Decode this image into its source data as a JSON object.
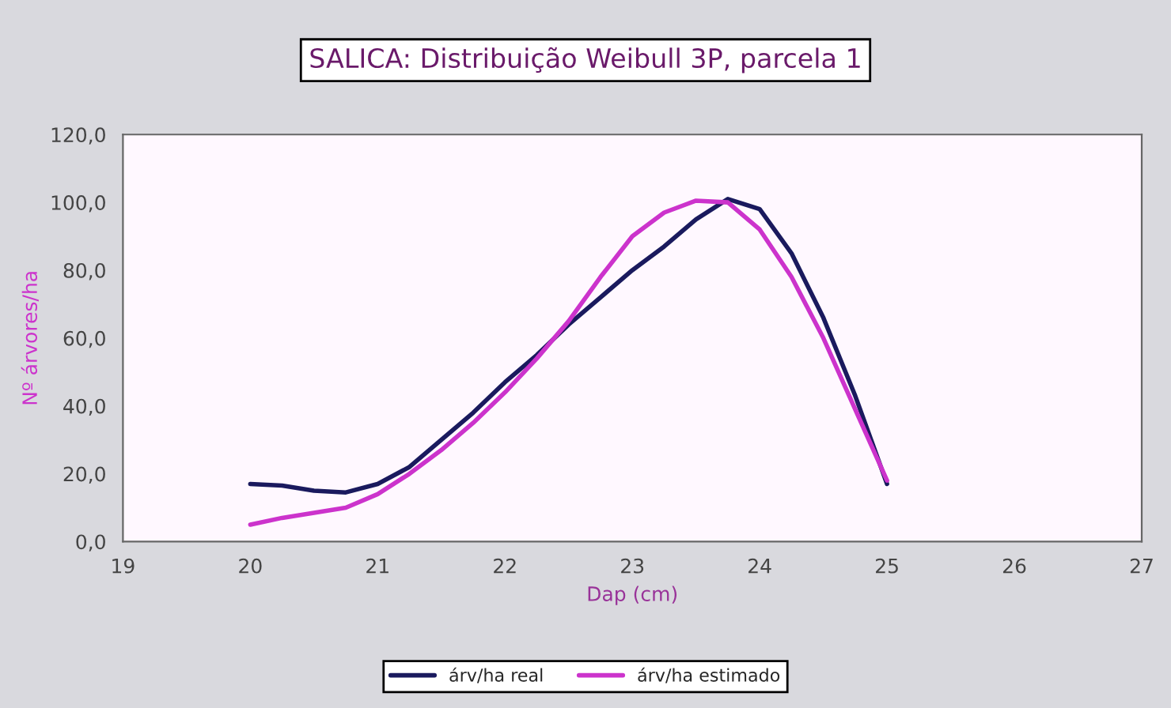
{
  "chart_data": {
    "type": "line",
    "title": "SALICA: Distribuição Weibull 3P, parcela 1",
    "xlabel": "Dap (cm)",
    "ylabel": "Nº árvores/ha",
    "x": [
      20,
      20.25,
      20.5,
      20.75,
      21,
      21.25,
      21.5,
      21.75,
      22,
      22.25,
      22.5,
      22.75,
      23,
      23.25,
      23.5,
      23.75,
      24,
      24.25,
      24.5,
      24.75,
      25
    ],
    "series": [
      {
        "name": "árv/ha real",
        "color": "#1a1a5e",
        "values": [
          17,
          16.5,
          15,
          14.5,
          17,
          22,
          30,
          38,
          47,
          55,
          64,
          72,
          80,
          87,
          95,
          101,
          98,
          85,
          66,
          43,
          17
        ]
      },
      {
        "name": "árv/ha estimado",
        "color": "#cc33cc",
        "values": [
          5,
          7,
          8.5,
          10,
          14,
          20,
          27,
          35,
          44,
          54,
          65,
          78,
          90,
          97,
          100.5,
          100,
          92,
          78,
          60,
          39,
          18
        ]
      }
    ],
    "xlim": [
      19,
      27
    ],
    "xticks": [
      19,
      20,
      21,
      22,
      23,
      24,
      25,
      26,
      27
    ],
    "ylim": [
      0,
      120
    ],
    "yticks": [
      {
        "value": 0,
        "label": "0,0"
      },
      {
        "value": 20,
        "label": "20,0"
      },
      {
        "value": 40,
        "label": "40,0"
      },
      {
        "value": 60,
        "label": "60,0"
      },
      {
        "value": 80,
        "label": "80,0"
      },
      {
        "value": 100,
        "label": "100,0"
      },
      {
        "value": 120,
        "label": "120,0"
      }
    ],
    "grid": false,
    "legend": "bottom",
    "marker": "none",
    "line_style": "solid"
  }
}
